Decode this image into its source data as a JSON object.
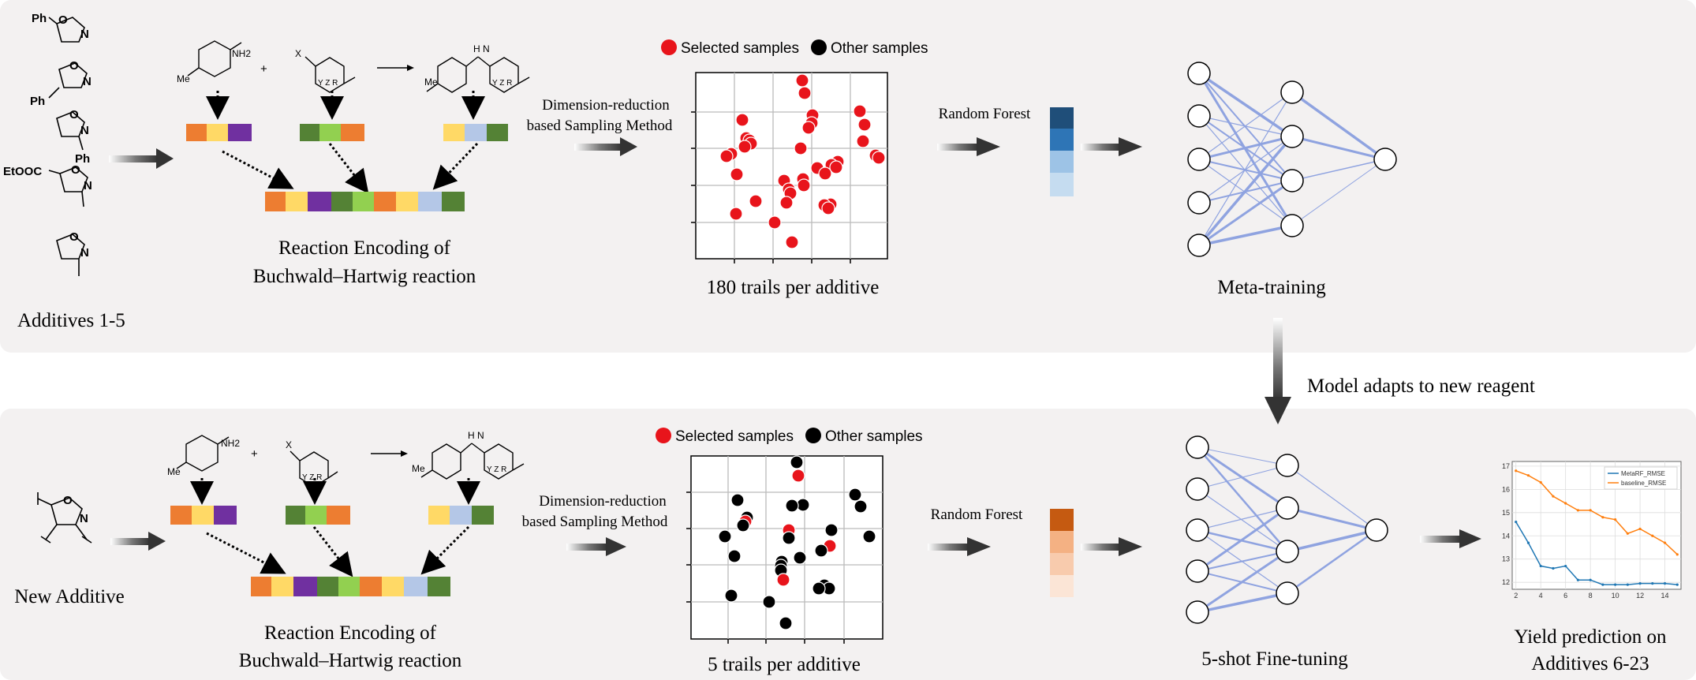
{
  "top": {
    "additives_label": "Additives 1-5",
    "additive_groups": [
      "Ph",
      "Ph",
      "Ph",
      "EtOOC"
    ],
    "reaction_labels": {
      "nh2": "NH2",
      "plus": "+",
      "x": "X",
      "nh": "H\nN",
      "me": "Me",
      "yzr": "Y Z R"
    },
    "encoding_title_1": "Reaction Encoding of",
    "encoding_title_2": "Buchwald–Hartwig reaction",
    "sampling_label_1": "Dimension-reduction",
    "sampling_label_2": "based Sampling Method",
    "legend_selected": "Selected samples",
    "legend_other": "Other samples",
    "scatter_caption": "180 trails per additive",
    "rf_label": "Random Forest",
    "nn_caption": "Meta-training"
  },
  "middle": {
    "adapt_label": "Model adapts to new reagent"
  },
  "bottom": {
    "additive_label": "New Additive",
    "encoding_title_1": "Reaction Encoding of",
    "encoding_title_2": "Buchwald–Hartwig reaction",
    "sampling_label_1": "Dimension-reduction",
    "sampling_label_2": "based Sampling Method",
    "legend_selected": "Selected samples",
    "legend_other": "Other samples",
    "scatter_caption": "5 trails per additive",
    "rf_label": "Random Forest",
    "nn_caption": "5-shot Fine-tuning",
    "yield_label_1": "Yield prediction on",
    "yield_label_2": "Additives 6-23"
  },
  "colors": {
    "panel_bg": "#f3f1f1",
    "red": "#e8141b",
    "black": "#000000",
    "enc_orange": "#ed7d31",
    "enc_yellow": "#ffd966",
    "enc_purple": "#7030a0",
    "enc_green": "#548235",
    "enc_lightgreen": "#92d050",
    "enc_lightblue": "#b4c7e7",
    "blue_scale": [
      "#1f4e79",
      "#2e75b6",
      "#9dc3e6",
      "#c5dcf0"
    ],
    "orange_scale": [
      "#c55a11",
      "#f4b183",
      "#f8cbad",
      "#fbe5d6"
    ],
    "nn_edge": "#8fa3e0"
  },
  "chart_data": [
    {
      "type": "line",
      "title": "",
      "xlabel": "",
      "ylabel": "",
      "x": [
        2,
        3,
        4,
        5,
        6,
        7,
        8,
        9,
        10,
        11,
        12,
        13,
        14,
        15
      ],
      "xticks": [
        "2",
        "4",
        "6",
        "8",
        "10",
        "12",
        "14"
      ],
      "yticks": [
        "12",
        "13",
        "14",
        "15",
        "16",
        "17"
      ],
      "ylim": [
        11.7,
        17.2
      ],
      "xlim": [
        1.7,
        15.3
      ],
      "grid": true,
      "legend_position": "top-right",
      "series": [
        {
          "name": "MetaRF_RMSE",
          "color": "#1f77b4",
          "values": [
            14.6,
            13.7,
            12.7,
            12.6,
            12.7,
            12.1,
            12.1,
            11.9,
            11.9,
            11.9,
            11.95,
            11.95,
            11.95,
            11.9
          ]
        },
        {
          "name": "baseline_RMSE",
          "color": "#ff7f0e",
          "values": [
            16.8,
            16.6,
            16.3,
            15.7,
            15.4,
            15.1,
            15.1,
            14.8,
            14.7,
            14.1,
            14.3,
            14.0,
            13.7,
            13.2
          ]
        }
      ]
    }
  ]
}
